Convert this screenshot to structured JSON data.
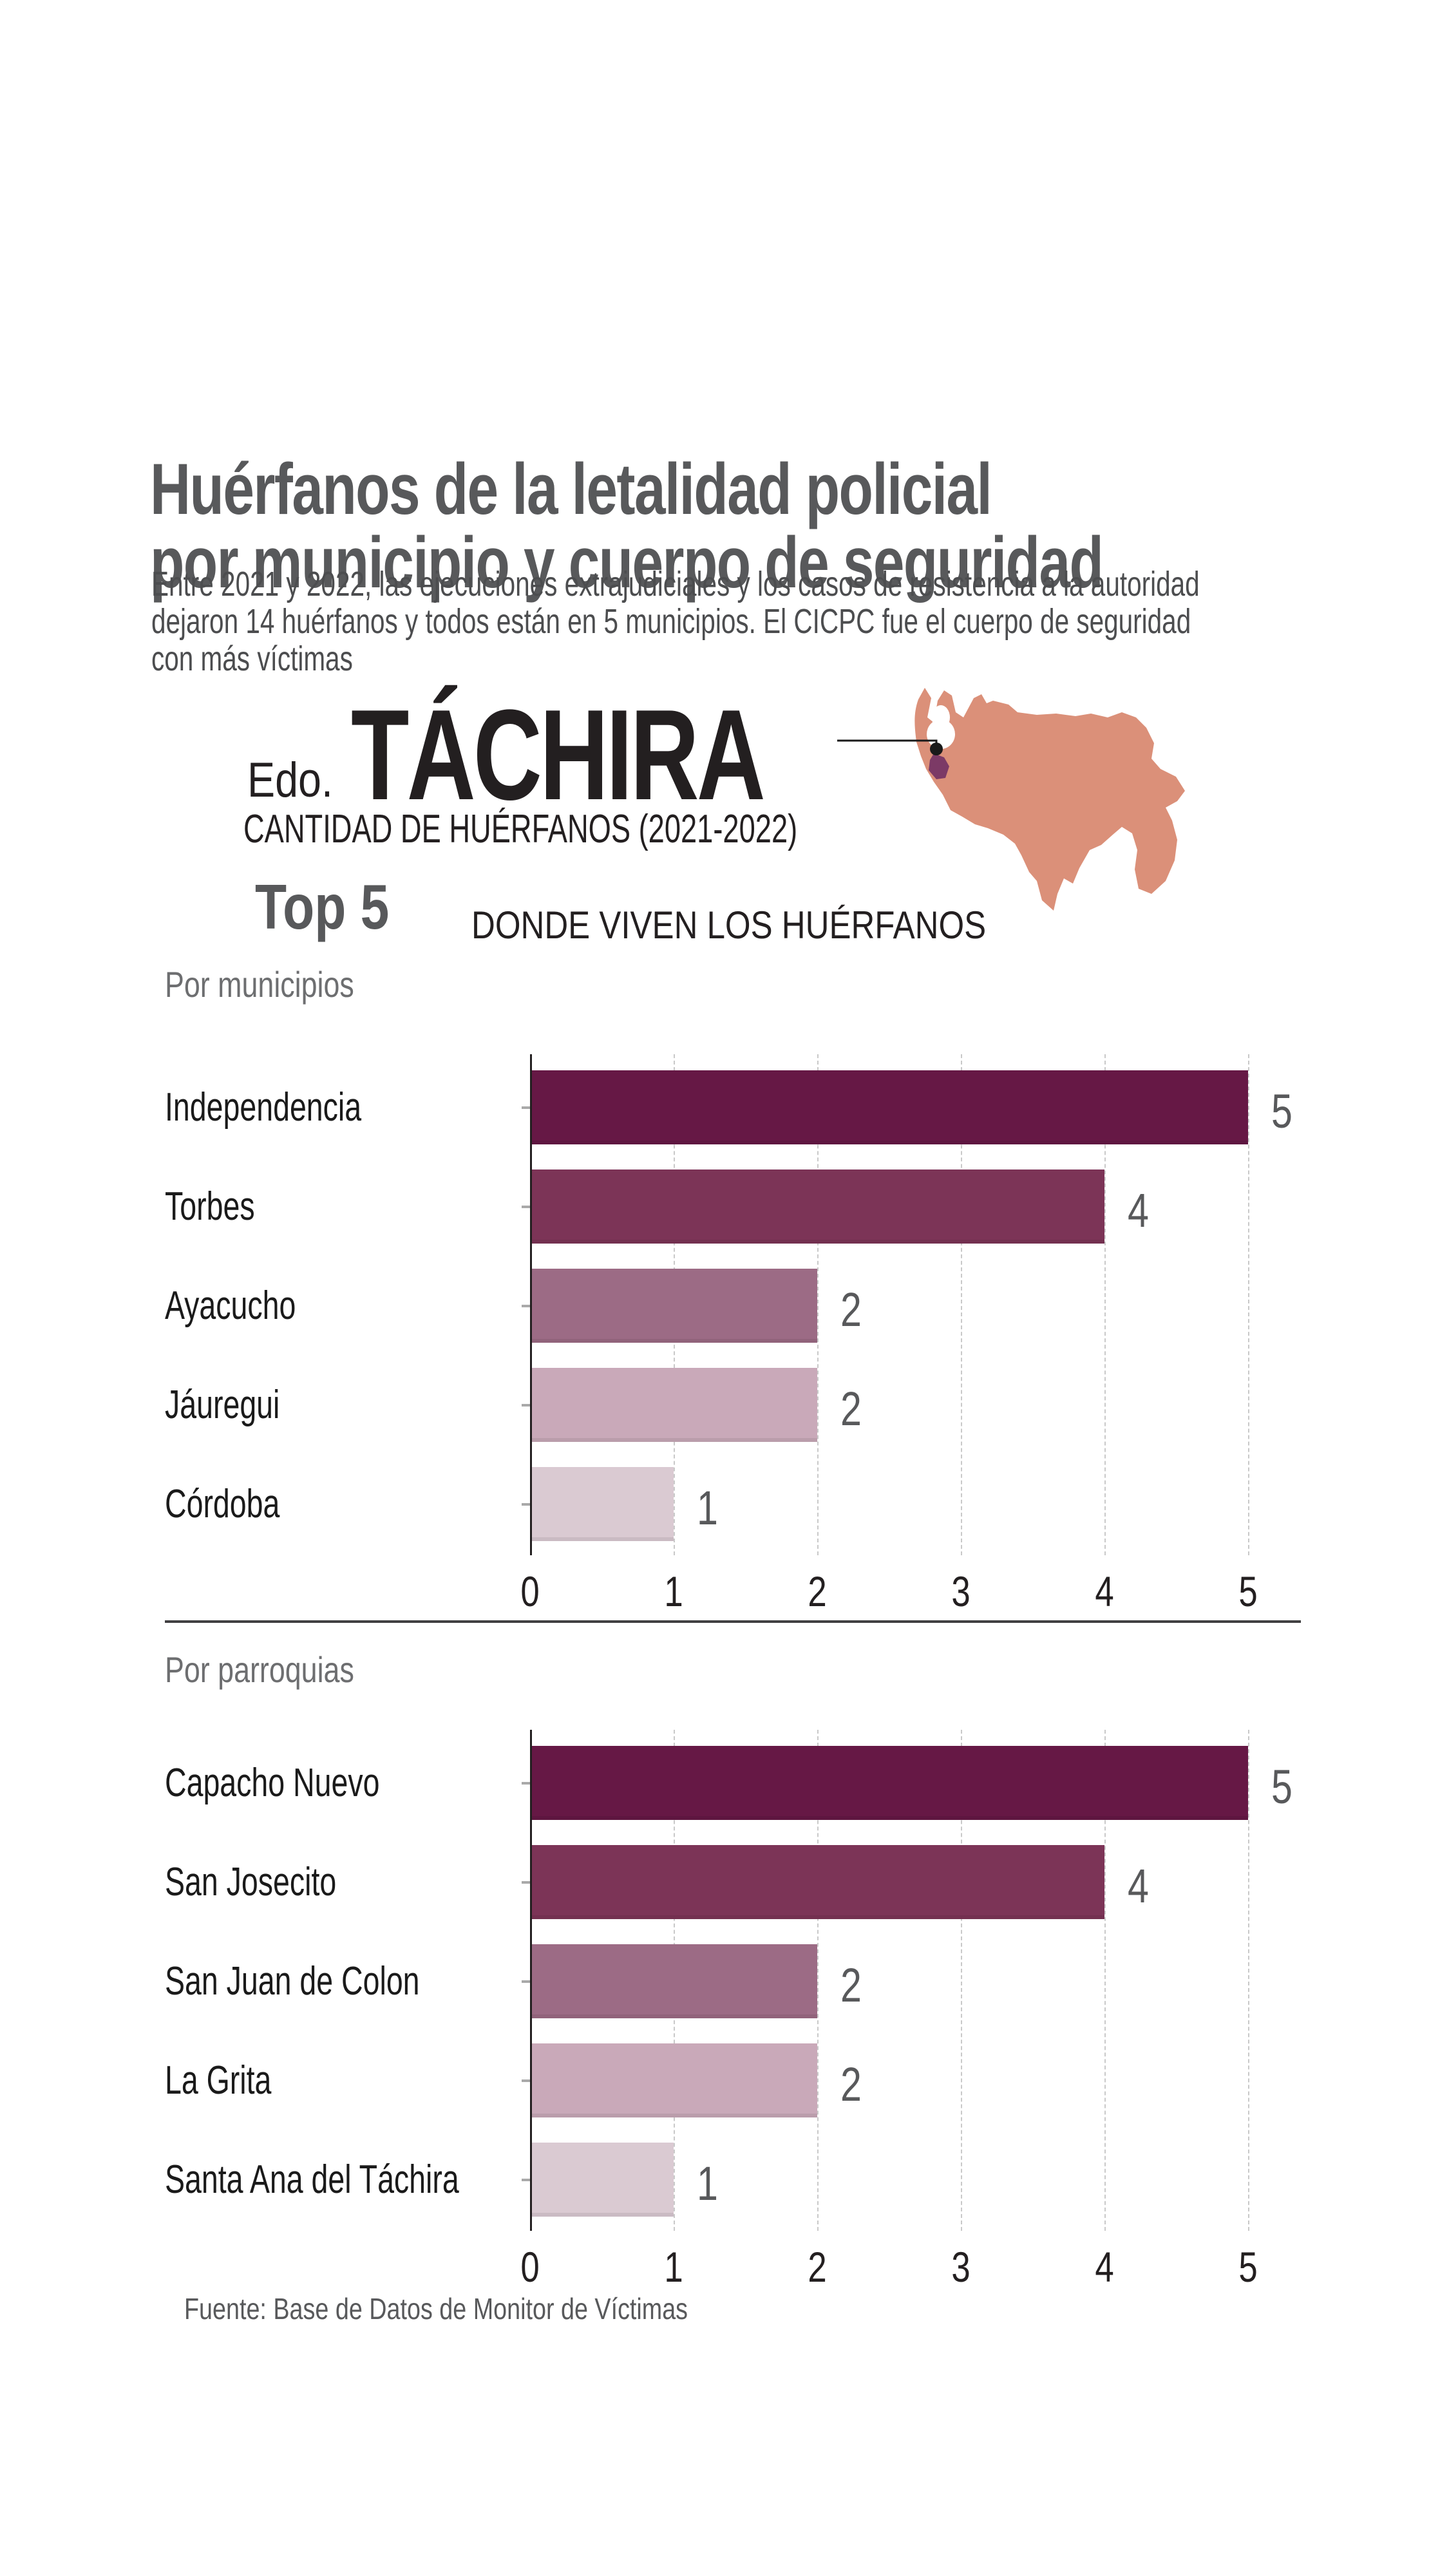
{
  "title": {
    "line1": "Huérfanos de la letalidad policial",
    "line2": "por municipio y cuerpo de seguridad"
  },
  "subtitle_lines": [
    "Entre 2021 y 2022, las ejecuciones extrajudiciales y los casos de resistencia a la autoridad",
    "dejaron 14 huérfanos y todos están en 5 municipios. El CICPC fue el cuerpo de seguridad",
    "con más víctimas"
  ],
  "state": {
    "prefix": "Edo.",
    "name": "TÁCHIRA",
    "caption": "CANTIDAD DE HUÉRFANOS (2021-2022)"
  },
  "top5": {
    "label": "Top 5",
    "caption": "DONDE VIVEN LOS HUÉRFANOS"
  },
  "source": "Fuente: Base de Datos de Monitor de Víctimas",
  "map": {
    "name": "venezuela-map",
    "country_fill": "#DB9079",
    "highlight_fill": "#7C3A66",
    "marker_fill": "#1A1A1A",
    "water_fill": "#FFFFFF"
  },
  "colors": {
    "title_gray": "#58595B",
    "text_dark": "#231F20",
    "muted_gray": "#6D6E70",
    "value_label": "#58595B",
    "gridline": "#C9C9C9",
    "bar_colors_by_rank": [
      "#661845",
      "#7C3457",
      "#9C6B85",
      "#C9A9B9",
      "#DACAD2"
    ]
  },
  "chart_data": [
    {
      "type": "bar",
      "orientation": "horizontal",
      "title": "Por municipios",
      "categories": [
        "Independencia",
        "Torbes",
        "Ayacucho",
        "Jáuregui",
        "Córdoba"
      ],
      "values": [
        5,
        4,
        2,
        2,
        1
      ],
      "value_labels": [
        "5",
        "4",
        "2",
        "2",
        "1"
      ],
      "xlim": [
        0,
        5
      ],
      "xticks": [
        0,
        1,
        2,
        3,
        4,
        5
      ],
      "grid": "dashed-vertical",
      "legend": "none"
    },
    {
      "type": "bar",
      "orientation": "horizontal",
      "title": "Por parroquias",
      "categories": [
        "Capacho Nuevo",
        "San Josecito",
        "San Juan de Colon",
        "La Grita",
        "Santa Ana del Táchira"
      ],
      "values": [
        5,
        4,
        2,
        2,
        1
      ],
      "value_labels": [
        "5",
        "4",
        "2",
        "2",
        "1"
      ],
      "xlim": [
        0,
        5
      ],
      "xticks": [
        0,
        1,
        2,
        3,
        4,
        5
      ],
      "grid": "dashed-vertical",
      "legend": "none"
    }
  ]
}
